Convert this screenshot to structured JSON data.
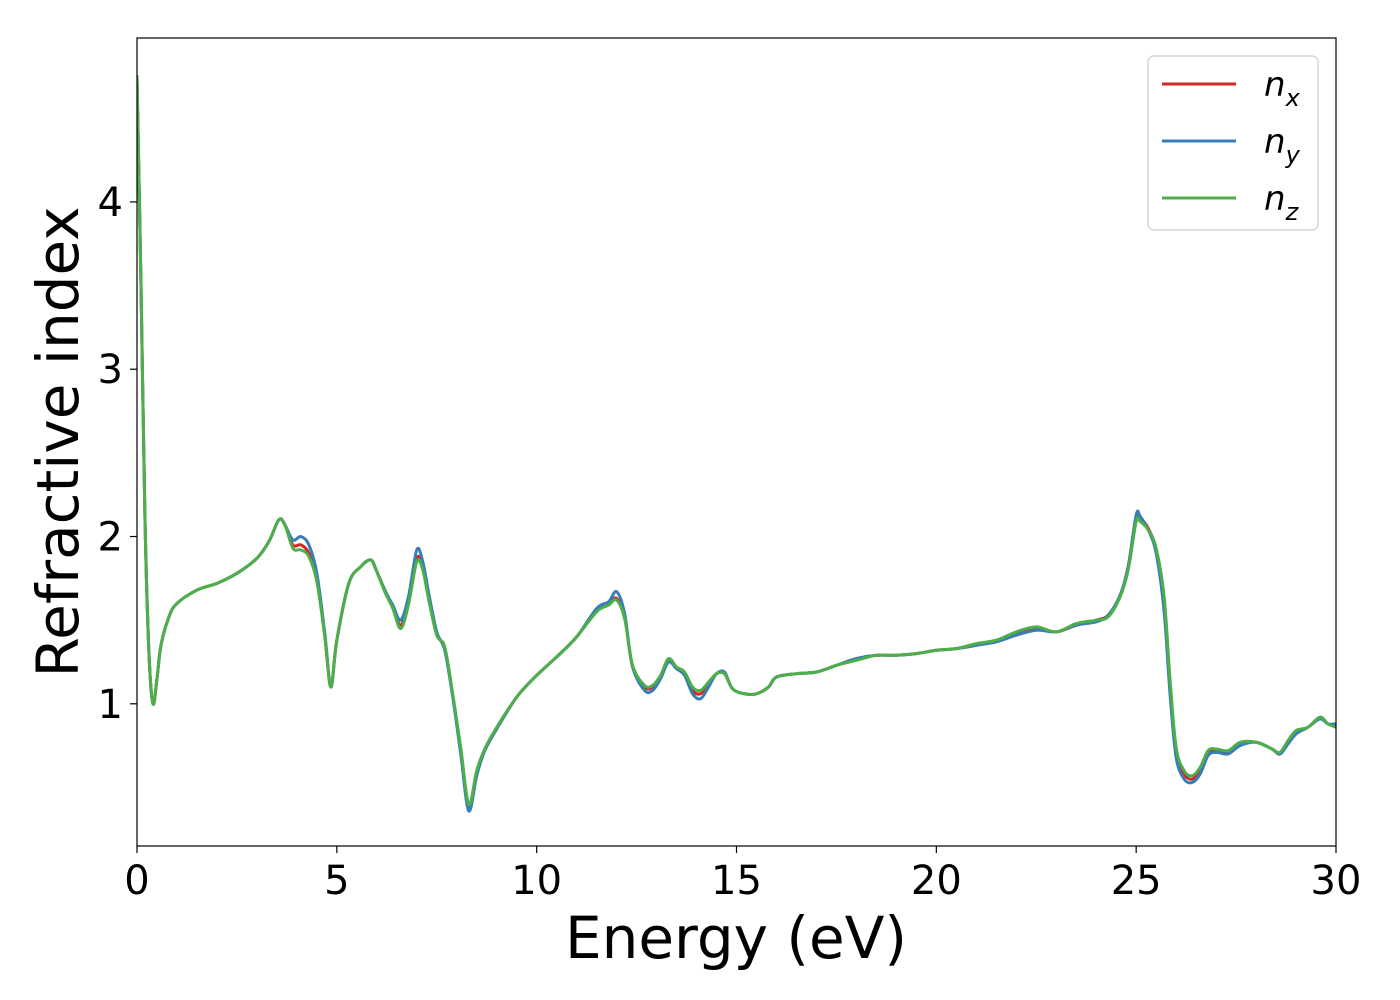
{
  "chart_data": {
    "type": "line",
    "title": "",
    "xlabel": "Energy (eV)",
    "ylabel": "Refractive index",
    "xlim": [
      0,
      30
    ],
    "ylim": [
      0.15,
      4.98
    ],
    "xticks": [
      0,
      5,
      10,
      15,
      20,
      25,
      30
    ],
    "yticks": [
      1,
      2,
      3,
      4
    ],
    "grid": false,
    "legend_position": "top-right",
    "series": [
      {
        "name": "n_x",
        "label_main": "n",
        "label_sub": "x",
        "color": "#d62728",
        "x": [
          0.0,
          0.1,
          0.2,
          0.3,
          0.4,
          0.5,
          0.6,
          0.8,
          1.0,
          1.5,
          2.0,
          2.5,
          3.0,
          3.3,
          3.55,
          3.7,
          3.9,
          4.1,
          4.3,
          4.5,
          4.7,
          4.85,
          5.0,
          5.3,
          5.6,
          5.85,
          6.0,
          6.2,
          6.4,
          6.6,
          6.8,
          7.0,
          7.15,
          7.3,
          7.5,
          7.7,
          7.9,
          8.1,
          8.3,
          8.5,
          8.7,
          9.0,
          9.5,
          10.0,
          10.5,
          11.0,
          11.5,
          11.8,
          12.0,
          12.2,
          12.4,
          12.7,
          12.9,
          13.1,
          13.3,
          13.5,
          13.7,
          13.9,
          14.1,
          14.3,
          14.5,
          14.7,
          14.9,
          15.2,
          15.5,
          15.8,
          16.0,
          16.5,
          17.0,
          17.5,
          18.0,
          18.5,
          19.0,
          19.5,
          20.0,
          20.5,
          21.0,
          21.5,
          22.0,
          22.5,
          23.0,
          23.5,
          24.0,
          24.3,
          24.6,
          24.8,
          25.0,
          25.1,
          25.3,
          25.5,
          25.7,
          25.85,
          26.0,
          26.2,
          26.4,
          26.6,
          26.8,
          27.0,
          27.3,
          27.6,
          28.0,
          28.4,
          28.6,
          28.8,
          29.0,
          29.3,
          29.6,
          29.8,
          30.0
        ],
        "y": [
          4.75,
          3.5,
          2.1,
          1.3,
          1.0,
          1.15,
          1.35,
          1.52,
          1.6,
          1.68,
          1.72,
          1.78,
          1.87,
          1.97,
          2.1,
          2.07,
          1.95,
          1.95,
          1.9,
          1.75,
          1.4,
          1.1,
          1.38,
          1.72,
          1.82,
          1.86,
          1.79,
          1.68,
          1.58,
          1.47,
          1.62,
          1.87,
          1.82,
          1.64,
          1.42,
          1.33,
          1.05,
          0.72,
          0.38,
          0.58,
          0.72,
          0.85,
          1.04,
          1.17,
          1.28,
          1.4,
          1.56,
          1.6,
          1.63,
          1.52,
          1.22,
          1.1,
          1.1,
          1.16,
          1.26,
          1.21,
          1.18,
          1.08,
          1.06,
          1.12,
          1.18,
          1.18,
          1.09,
          1.06,
          1.06,
          1.1,
          1.16,
          1.18,
          1.19,
          1.23,
          1.27,
          1.29,
          1.29,
          1.3,
          1.32,
          1.33,
          1.35,
          1.38,
          1.42,
          1.45,
          1.43,
          1.47,
          1.5,
          1.53,
          1.65,
          1.82,
          2.11,
          2.11,
          2.05,
          1.92,
          1.62,
          1.1,
          0.72,
          0.58,
          0.55,
          0.6,
          0.7,
          0.72,
          0.71,
          0.76,
          0.77,
          0.73,
          0.7,
          0.77,
          0.83,
          0.86,
          0.92,
          0.88,
          0.87
        ]
      },
      {
        "name": "n_y",
        "label_main": "n",
        "label_sub": "y",
        "color": "#377eb8",
        "x": [
          0.0,
          0.1,
          0.2,
          0.3,
          0.4,
          0.5,
          0.6,
          0.8,
          1.0,
          1.5,
          2.0,
          2.5,
          3.0,
          3.3,
          3.55,
          3.7,
          3.9,
          4.1,
          4.3,
          4.5,
          4.7,
          4.85,
          5.0,
          5.3,
          5.6,
          5.85,
          6.0,
          6.2,
          6.4,
          6.6,
          6.8,
          7.0,
          7.15,
          7.3,
          7.5,
          7.7,
          7.9,
          8.1,
          8.3,
          8.5,
          8.7,
          9.0,
          9.5,
          10.0,
          10.5,
          11.0,
          11.5,
          11.8,
          12.0,
          12.2,
          12.4,
          12.7,
          12.9,
          13.1,
          13.3,
          13.5,
          13.7,
          13.9,
          14.1,
          14.3,
          14.5,
          14.7,
          14.9,
          15.2,
          15.5,
          15.8,
          16.0,
          16.5,
          17.0,
          17.5,
          18.0,
          18.5,
          19.0,
          19.5,
          20.0,
          20.5,
          21.0,
          21.5,
          22.0,
          22.5,
          23.0,
          23.5,
          24.0,
          24.3,
          24.6,
          24.8,
          25.0,
          25.1,
          25.3,
          25.5,
          25.7,
          25.85,
          26.0,
          26.2,
          26.4,
          26.6,
          26.8,
          27.0,
          27.3,
          27.6,
          28.0,
          28.4,
          28.6,
          28.8,
          29.0,
          29.3,
          29.6,
          29.8,
          30.0
        ],
        "y": [
          4.75,
          3.5,
          2.1,
          1.3,
          1.0,
          1.15,
          1.35,
          1.52,
          1.6,
          1.68,
          1.72,
          1.78,
          1.87,
          1.97,
          2.1,
          2.07,
          1.98,
          2.0,
          1.95,
          1.78,
          1.42,
          1.11,
          1.38,
          1.72,
          1.82,
          1.86,
          1.79,
          1.68,
          1.59,
          1.5,
          1.65,
          1.92,
          1.85,
          1.66,
          1.43,
          1.32,
          1.04,
          0.7,
          0.36,
          0.57,
          0.72,
          0.85,
          1.04,
          1.17,
          1.28,
          1.4,
          1.57,
          1.61,
          1.67,
          1.54,
          1.22,
          1.08,
          1.08,
          1.15,
          1.25,
          1.21,
          1.17,
          1.06,
          1.03,
          1.1,
          1.18,
          1.19,
          1.09,
          1.06,
          1.06,
          1.1,
          1.16,
          1.18,
          1.19,
          1.23,
          1.27,
          1.29,
          1.29,
          1.3,
          1.32,
          1.33,
          1.35,
          1.37,
          1.41,
          1.44,
          1.43,
          1.47,
          1.49,
          1.53,
          1.65,
          1.82,
          2.13,
          2.12,
          2.04,
          1.9,
          1.55,
          1.05,
          0.68,
          0.55,
          0.53,
          0.58,
          0.69,
          0.71,
          0.7,
          0.75,
          0.77,
          0.73,
          0.7,
          0.76,
          0.82,
          0.86,
          0.91,
          0.88,
          0.88
        ]
      },
      {
        "name": "n_z",
        "label_main": "n",
        "label_sub": "z",
        "color": "#4daf4a",
        "x": [
          0.0,
          0.1,
          0.2,
          0.3,
          0.4,
          0.5,
          0.6,
          0.8,
          1.0,
          1.5,
          2.0,
          2.5,
          3.0,
          3.3,
          3.55,
          3.7,
          3.9,
          4.1,
          4.3,
          4.5,
          4.7,
          4.85,
          5.0,
          5.3,
          5.6,
          5.85,
          6.0,
          6.2,
          6.4,
          6.6,
          6.8,
          7.0,
          7.15,
          7.3,
          7.5,
          7.7,
          7.9,
          8.1,
          8.3,
          8.5,
          8.7,
          9.0,
          9.5,
          10.0,
          10.5,
          11.0,
          11.5,
          11.8,
          12.0,
          12.2,
          12.4,
          12.7,
          12.9,
          13.1,
          13.3,
          13.5,
          13.7,
          13.9,
          14.1,
          14.3,
          14.5,
          14.7,
          14.9,
          15.2,
          15.5,
          15.8,
          16.0,
          16.5,
          17.0,
          17.5,
          18.0,
          18.5,
          19.0,
          19.5,
          20.0,
          20.5,
          21.0,
          21.5,
          22.0,
          22.5,
          23.0,
          23.5,
          24.0,
          24.3,
          24.6,
          24.8,
          25.0,
          25.1,
          25.3,
          25.5,
          25.7,
          25.85,
          26.0,
          26.2,
          26.4,
          26.6,
          26.8,
          27.0,
          27.3,
          27.6,
          28.0,
          28.4,
          28.6,
          28.8,
          29.0,
          29.3,
          29.6,
          29.8,
          30.0
        ],
        "y": [
          4.75,
          3.5,
          2.1,
          1.3,
          1.0,
          1.15,
          1.35,
          1.52,
          1.6,
          1.68,
          1.72,
          1.78,
          1.87,
          1.97,
          2.1,
          2.07,
          1.93,
          1.92,
          1.88,
          1.73,
          1.4,
          1.1,
          1.38,
          1.72,
          1.82,
          1.86,
          1.79,
          1.67,
          1.57,
          1.45,
          1.6,
          1.85,
          1.8,
          1.62,
          1.41,
          1.34,
          1.06,
          0.74,
          0.4,
          0.6,
          0.73,
          0.86,
          1.04,
          1.17,
          1.28,
          1.4,
          1.55,
          1.59,
          1.62,
          1.51,
          1.23,
          1.11,
          1.11,
          1.17,
          1.27,
          1.22,
          1.19,
          1.1,
          1.08,
          1.13,
          1.18,
          1.18,
          1.09,
          1.06,
          1.06,
          1.1,
          1.16,
          1.18,
          1.19,
          1.23,
          1.26,
          1.29,
          1.29,
          1.3,
          1.32,
          1.33,
          1.36,
          1.38,
          1.43,
          1.46,
          1.43,
          1.48,
          1.5,
          1.52,
          1.64,
          1.8,
          2.09,
          2.09,
          2.04,
          1.93,
          1.64,
          1.14,
          0.74,
          0.6,
          0.57,
          0.62,
          0.72,
          0.73,
          0.72,
          0.77,
          0.77,
          0.73,
          0.71,
          0.78,
          0.84,
          0.86,
          0.92,
          0.88,
          0.86
        ]
      }
    ]
  }
}
